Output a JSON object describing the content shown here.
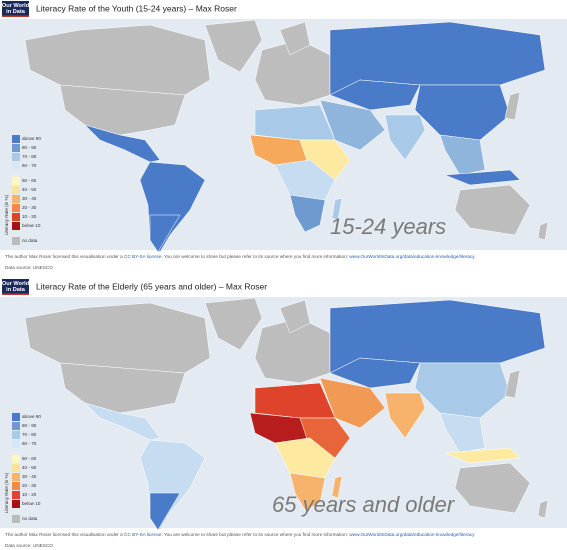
{
  "panels": [
    {
      "logo": [
        "Our World",
        "in Data"
      ],
      "title": "Literacy Rate of the Youth (15-24 years) – Max Roser",
      "overlay": "15-24 years",
      "footer": [
        "The author Max Roser licensed this visualisation under a ",
        "CC BY-SA license",
        ". You are welcome to share but please refer to its source where you find more information: ",
        "www.OurWorldInData.org/data/education-knowledge/literacy"
      ],
      "data_source": "Data source: UNESCO"
    },
    {
      "logo": [
        "Our World",
        "in Data"
      ],
      "title": "Literacy Rate of the Elderly (65 years and older) – Max Roser",
      "overlay": "65 years and older",
      "footer": [
        "The author Max Roser licensed this visualisation under a ",
        "CC BY-SA license",
        ". You are welcome to share but please refer to its source where you find more information: ",
        "www.OurWorldInData.org/data/education-knowledge/literacy"
      ],
      "data_source": "Data source: UNESCO"
    }
  ],
  "legend": {
    "axis_label": "Literacy Rate (in %)",
    "entries": [
      {
        "label": "above 90",
        "color": "#4a7bc8"
      },
      {
        "label": "80 - 90",
        "color": "#6e9ad0"
      },
      {
        "label": "70 - 80",
        "color": "#a9c9e8"
      },
      {
        "label": "60 - 70",
        "color": "#d6e7f5"
      },
      {
        "label": "50 - 60",
        "color": "#fff6c0"
      },
      {
        "label": "40 - 50",
        "color": "#fde29a"
      },
      {
        "label": "30 - 40",
        "color": "#f7b36b"
      },
      {
        "label": "20 - 30",
        "color": "#f08a4b"
      },
      {
        "label": "10 - 20",
        "color": "#e0432b"
      },
      {
        "label": "below 10",
        "color": "#a50f15"
      },
      {
        "label": "no data",
        "color": "#bbbbbb"
      }
    ]
  }
}
